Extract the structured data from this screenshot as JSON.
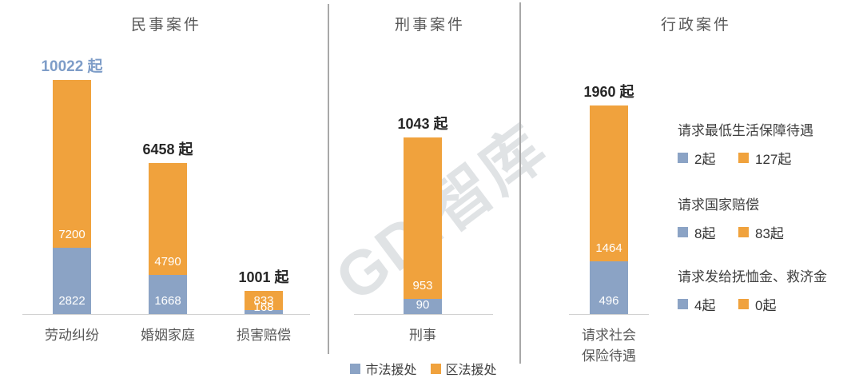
{
  "watermark": "GDi智库",
  "colors": {
    "blue": "#8BA3C5",
    "orange": "#F0A23D",
    "blue_total_label": "#7E9DC8",
    "total_label": "#262626",
    "title": "#595959",
    "category": "#595959",
    "axis_line": "#d2d2d2",
    "divider": "#a8a8a8",
    "bar_value_text": "#ffffff"
  },
  "legend": {
    "items": [
      {
        "label": "市法援处",
        "series": "blue"
      },
      {
        "label": "区法援处",
        "series": "orange"
      }
    ]
  },
  "chart_data": {
    "type": "bar",
    "stacked": true,
    "unit": "起",
    "series": [
      {
        "name": "市法援处",
        "color_key": "blue"
      },
      {
        "name": "区法援处",
        "color_key": "orange"
      }
    ],
    "panels": [
      {
        "title": "民事案件",
        "bars": [
          {
            "category": "劳动纠纷",
            "blue": 2822,
            "orange": 7200,
            "total": 10022,
            "total_label": "10022 起",
            "total_highlighted": true
          },
          {
            "category": "婚姻家庭",
            "blue": 1668,
            "orange": 4790,
            "total": 6458,
            "total_label": "6458 起"
          },
          {
            "category": "损害赔偿",
            "blue": 168,
            "orange": 833,
            "total": 1001,
            "total_label": "1001 起"
          }
        ]
      },
      {
        "title": "刑事案件",
        "bars": [
          {
            "category": "刑事",
            "blue": 90,
            "orange": 953,
            "total": 1043,
            "total_label": "1043 起"
          }
        ]
      },
      {
        "title": "行政案件",
        "bars": [
          {
            "category": "请求社会保险待遇",
            "category_lines": [
              "请求社会",
              "保险待遇"
            ],
            "blue": 496,
            "orange": 1464,
            "total": 1960,
            "total_label": "1960 起"
          }
        ],
        "annotations": [
          {
            "title": "请求最低生活保障待遇",
            "blue_label": "2起",
            "orange_label": "127起"
          },
          {
            "title": "请求国家赔偿",
            "blue_label": "8起",
            "orange_label": "83起"
          },
          {
            "title": "请求发给抚恤金、救济金",
            "blue_label": "4起",
            "orange_label": "0起"
          }
        ]
      }
    ]
  }
}
